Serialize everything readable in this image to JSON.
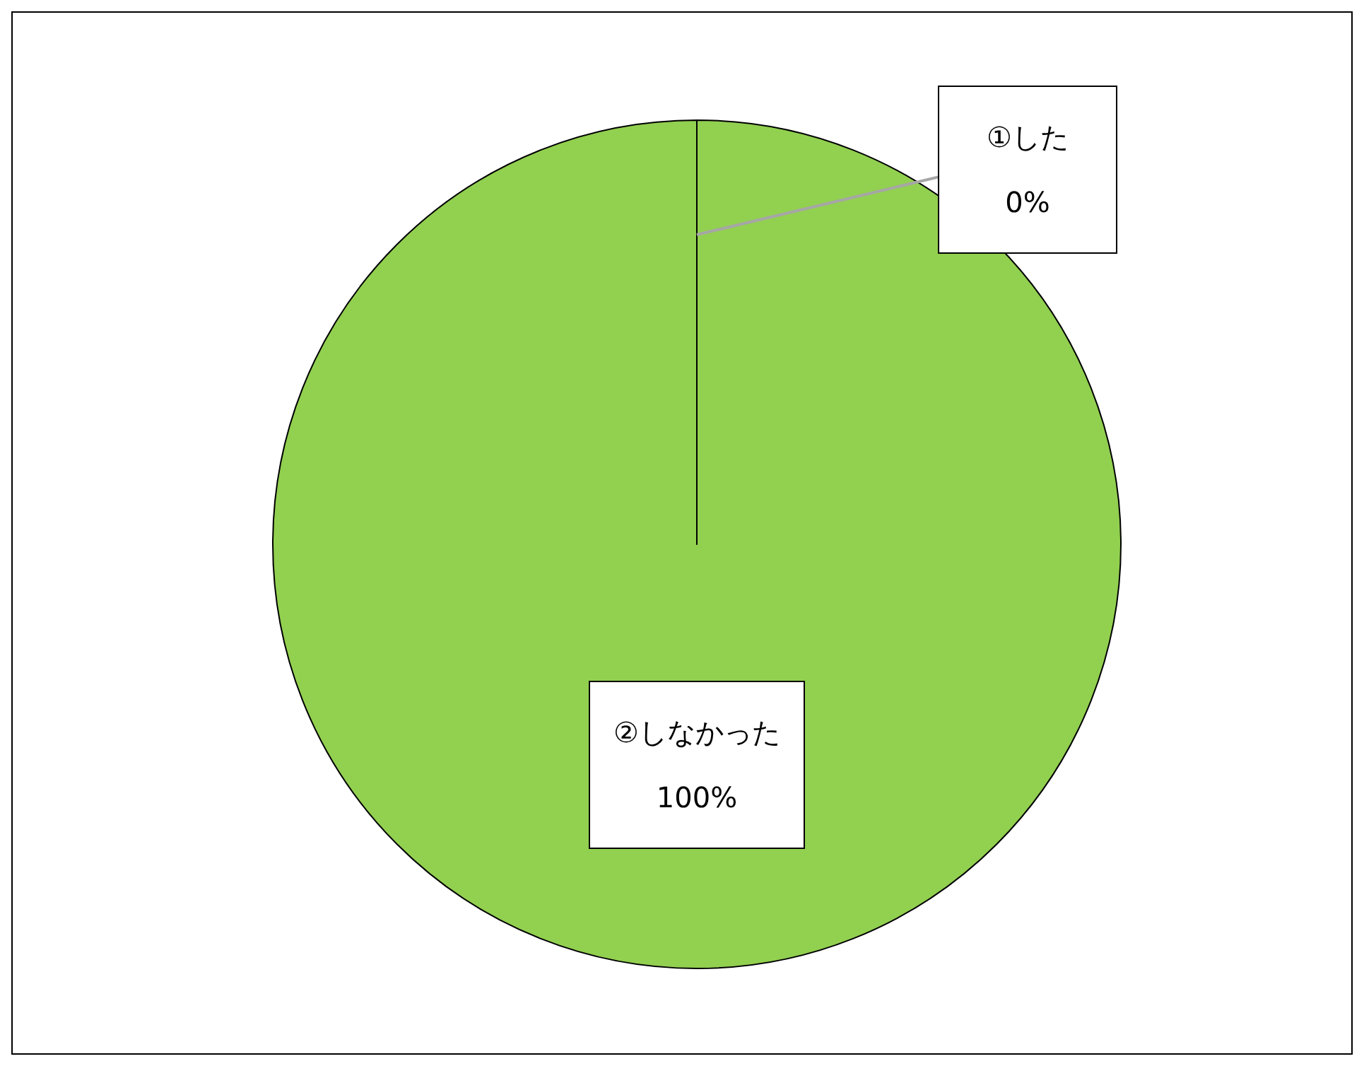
{
  "chart_data": {
    "type": "pie",
    "categories": [
      "①した",
      "②しなかった"
    ],
    "values": [
      0,
      100
    ],
    "colors": [
      "#4472c4",
      "#92d050"
    ],
    "value_labels": [
      "0%",
      "100%"
    ]
  }
}
